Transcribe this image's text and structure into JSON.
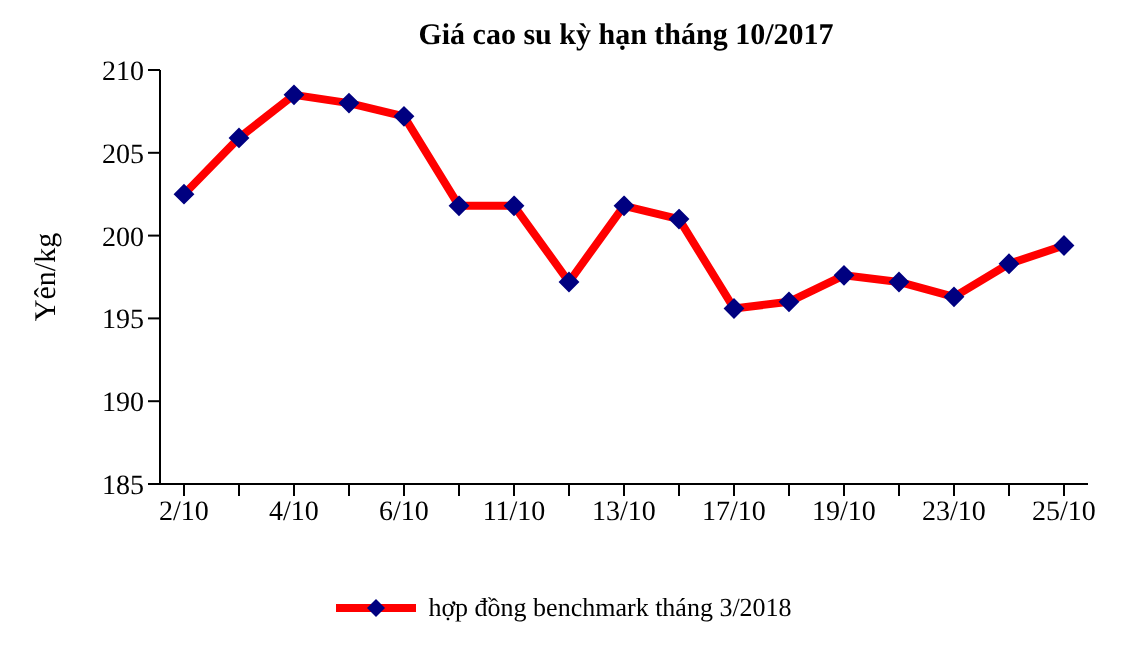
{
  "chart_data": {
    "type": "line",
    "title": "Giá cao su kỳ hạn tháng 10/2017",
    "ylabel": "Yên/kg",
    "categories": [
      "2/10",
      null,
      "4/10",
      null,
      "6/10",
      null,
      "11/10",
      null,
      "13/10",
      null,
      "17/10",
      null,
      "19/10",
      null,
      "23/10",
      null,
      "25/10"
    ],
    "series": [
      {
        "name": "hợp đồng benchmark tháng 3/2018",
        "color": "#ff0000",
        "values": [
          202.5,
          205.9,
          208.5,
          208,
          207.2,
          201.8,
          201.8,
          197.2,
          201.8,
          201,
          195.6,
          196,
          197.6,
          197.2,
          196.3,
          198.3,
          199.4
        ]
      }
    ],
    "ylim": [
      185,
      210
    ],
    "yticks": [
      185,
      190,
      195,
      200,
      205,
      210
    ],
    "legend": "bottom",
    "marker": "diamond",
    "line_style": "solid"
  }
}
